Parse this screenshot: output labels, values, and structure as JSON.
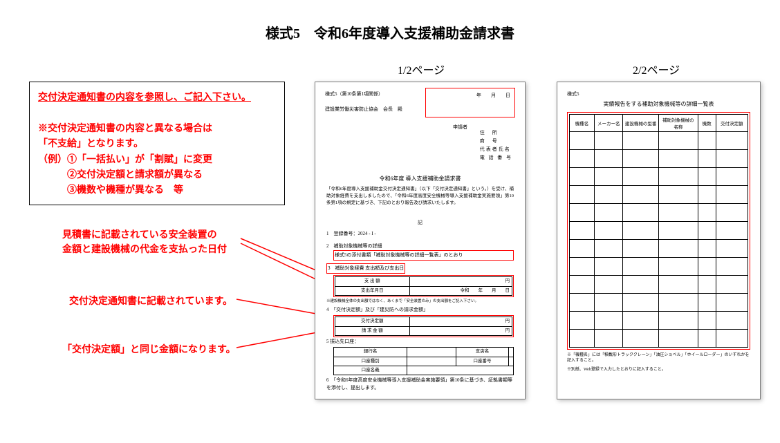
{
  "title": "様式5　令和6年度導入支援補助金請求書",
  "page_labels": {
    "p1": "1/2ページ",
    "p2": "2/2ページ"
  },
  "notice": {
    "line1": "交付決定通知書の内容を参照し、ご記入下さい。",
    "line2": "※交付決定通知書の内容と異なる場合は",
    "line3": "「不支給」となります。",
    "line4": "（例）①「一括払い」が「割賦」に変更",
    "line5": "　　　②交付決定額と請求額が異なる",
    "line6": "　　　③機数や機種が異なる　等"
  },
  "callouts": {
    "c1a": "見積書に記載されている安全装置の",
    "c1b": "金額と建設機械の代金を支払った日付",
    "c2": "交付決定通知書に記載されています。",
    "c3": "「交付決定額」と同じ金額になります。"
  },
  "page1": {
    "form_no": "様式5（第10条第1項関係）",
    "date": "年　　月　　日",
    "addressee": "建設業労働災害防止協会　会長　殿",
    "applicant_label": "申請者",
    "applicant_fields": {
      "f1": "住　所",
      "f2": "商　号",
      "f3": "代表者氏名",
      "f4": "電 話 番 号"
    },
    "doc_title": "令和6年度 導入支援補助金請求書",
    "paragraph": "「令和6年度導入支援補助金交付決定通知書」（以下「交付決定通知書」という。）を受け、補助対象経費を支出しましたので、「令和6年度高度安全機械等導入支援補助金実施要領」第10条第1項の規定に基づき、下記のとおり報告及び請求いたします。",
    "ki": "記",
    "s1": "1　登録番号：2024 ‐ I ‐",
    "s2": {
      "t": "2　補助対象機械等の詳細",
      "sub": "様式5の添付書類「補助対象機械等の詳細一覧表」のとおり"
    },
    "s3": {
      "t": "3　補助対象経費 支出額及び支出日",
      "r1": "支 出 額",
      "r1v": "円",
      "r2": "支出年月日",
      "r2v": "令和　　年　　月　　日",
      "note": "※建設機械全体の支出額ではなく、あくまで「安全装置のみ」の支出額をご記入下さい。"
    },
    "s4": {
      "t": "4　「交付決定額」及び「建災防への請求金額」",
      "r1": "交付決定額",
      "r1v": "円",
      "r2": "請 求 金 額",
      "r2v": "円"
    },
    "s5": {
      "t": "5 振込先口座：",
      "r1a": "銀行名",
      "r1b": "支店名",
      "r2a": "口座種別",
      "r2b": "口座番号",
      "r3a": "口座名義"
    },
    "s6": "6　「令和6年度高度安全機械等導入支援補助金実施要領」第10条に基づき、証拠書類等を添付し、提出します。"
  },
  "page2": {
    "form_no": "様式5",
    "title": "実績報告をする補助対象機械等の詳細一覧表",
    "cols": {
      "c1": "機種名",
      "c2": "メーカー名",
      "c3": "建設機械の型番",
      "c4": "補助対象機械の名称",
      "c5": "機数",
      "c6": "交付決定額"
    },
    "rowcount": 12,
    "note1": "※「機種名」には「積載形トラッククレーン」「油圧ショベル」「ホイールローダー」のいずれかを記入すること。",
    "note2": "※別紙、Web登録で入力したとおりに記入すること。"
  },
  "colors": {
    "red": "#ff0000",
    "black": "#000000",
    "bg": "#ffffff"
  }
}
